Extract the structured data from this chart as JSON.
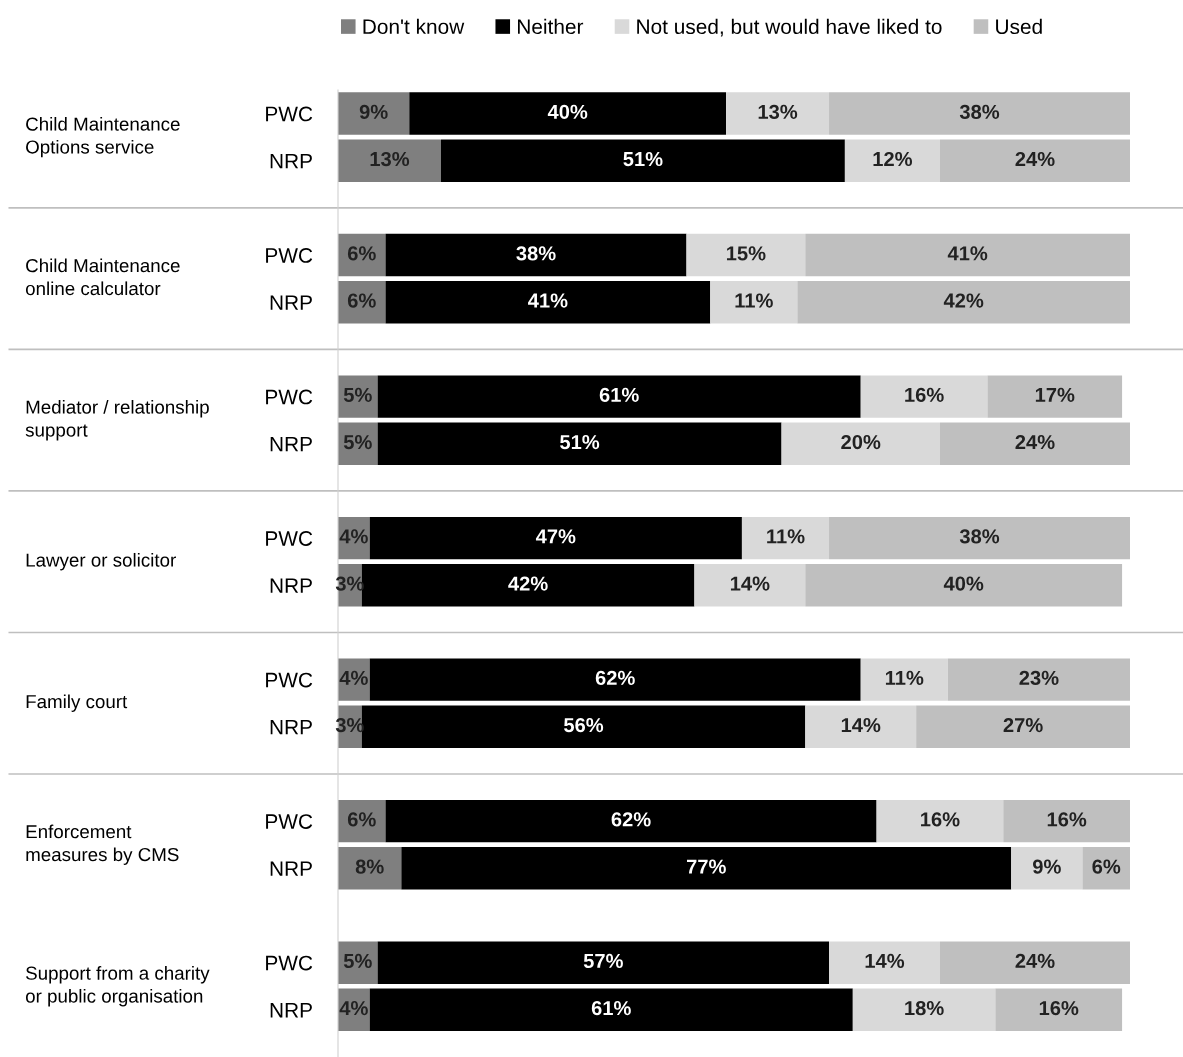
{
  "chart_data": {
    "type": "bar",
    "orientation": "horizontal",
    "stacked": true,
    "legend": "top",
    "grid": false,
    "categories": [
      "PWC",
      "NRP",
      "PWC",
      "NRP",
      "PWC",
      "NRP",
      "PWC",
      "NRP",
      "PWC",
      "NRP",
      "PWC",
      "NRP",
      "PWC",
      "NRP"
    ],
    "annotations": [
      "Child Maintenance\nOptions service",
      "Child Maintenance\nonline calculator",
      "Mediator / relationship\nsupport",
      "Lawyer or solicitor",
      "Family court",
      "Enforcement\nmeasures by CMS",
      "Support from a charity\nor public organisation"
    ],
    "series": [
      {
        "name": "Don't know",
        "color": "#7f7f7f",
        "values": [
          9,
          13,
          6,
          6,
          5,
          5,
          4,
          3,
          4,
          3,
          6,
          8,
          5,
          4
        ],
        "value_labels": [
          "9%",
          "13%",
          "6%",
          "6%",
          "5%",
          "5%",
          "4%",
          "3%",
          "4%",
          "3%",
          "6%",
          "8%",
          "5%",
          "4%"
        ]
      },
      {
        "name": "Neither",
        "color": "#000000",
        "values": [
          40,
          51,
          38,
          41,
          61,
          51,
          47,
          42,
          62,
          56,
          62,
          77,
          57,
          61
        ],
        "value_labels": [
          "40%",
          "51%",
          "38%",
          "41%",
          "61%",
          "51%",
          "47%",
          "42%",
          "62%",
          "56%",
          "62%",
          "77%",
          "57%",
          "61%"
        ]
      },
      {
        "name": "Not used, but would have liked to",
        "color": "#d9d9d9",
        "values": [
          13,
          12,
          15,
          11,
          16,
          20,
          11,
          14,
          11,
          14,
          16,
          9,
          14,
          18
        ],
        "value_labels": [
          "13%",
          "12%",
          "15%",
          "11%",
          "16%",
          "20%",
          "11%",
          "14%",
          "11%",
          "14%",
          "16%",
          "9%",
          "14%",
          "18%"
        ]
      },
      {
        "name": "Used",
        "color": "#bfbfbf",
        "values": [
          38,
          24,
          41,
          42,
          17,
          24,
          38,
          40,
          23,
          27,
          16,
          6,
          24,
          16
        ],
        "value_labels": [
          "38%",
          "24%",
          "41%",
          "42%",
          "17%",
          "24%",
          "38%",
          "40%",
          "23%",
          "27%",
          "16%",
          "6%",
          "24%",
          "16%"
        ]
      }
    ]
  }
}
